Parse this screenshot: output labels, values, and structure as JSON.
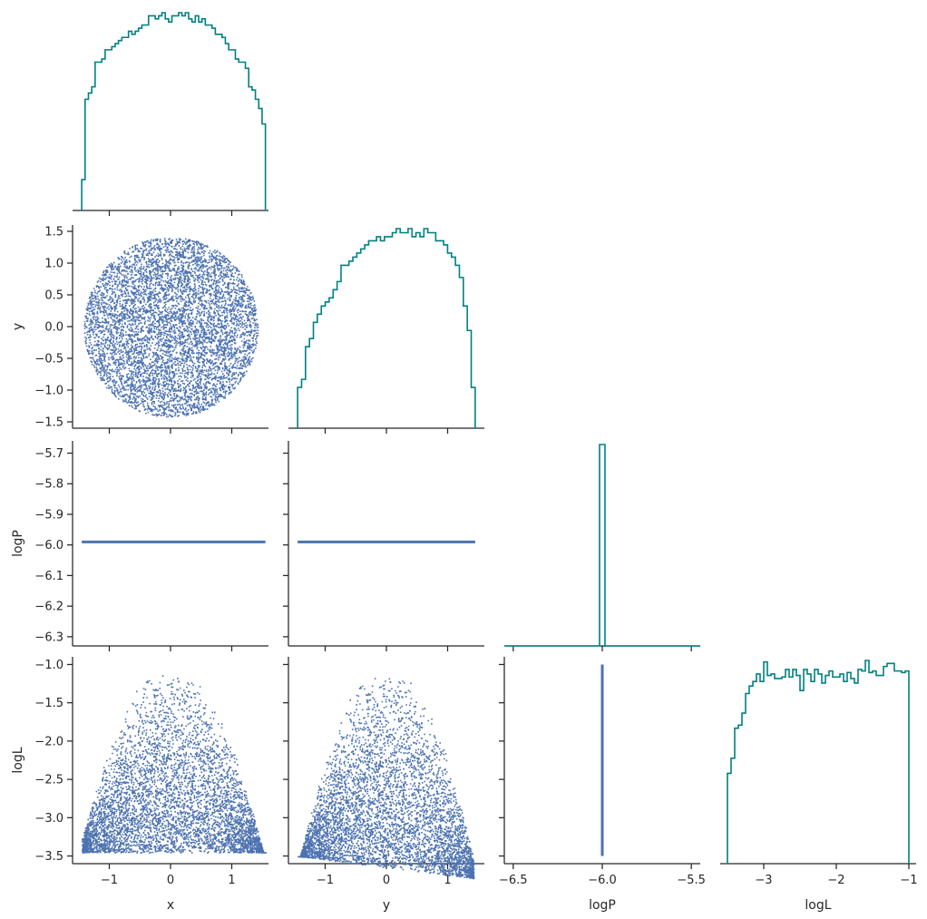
{
  "chart_data": {
    "type": "pairplot",
    "variables": [
      "x",
      "y",
      "logP",
      "logL"
    ],
    "layout": "corner",
    "colors": {
      "histogram": "#008080",
      "scatter": "#4c72b0"
    },
    "axes": {
      "x": {
        "label": "x",
        "range": [
          -1.6,
          1.6
        ],
        "ticks": [
          -1,
          0,
          1
        ],
        "tick_labels": [
          "−1",
          "0",
          "1"
        ]
      },
      "y": {
        "label": "y",
        "range": [
          -1.6,
          1.6
        ],
        "ticks": [
          -1.5,
          -1.0,
          -0.5,
          0.0,
          0.5,
          1.0,
          1.5
        ],
        "tick_labels": [
          "−1.5",
          "−1.0",
          "−0.5",
          "0.0",
          "0.5",
          "1.0",
          "1.5"
        ],
        "bottom_ticks": [
          -1,
          0,
          1
        ],
        "bottom_tick_labels": [
          "−1",
          "0",
          "1"
        ]
      },
      "logP": {
        "label": "logP",
        "range": [
          -6.33,
          -5.66
        ],
        "ticks": [
          -6.3,
          -6.2,
          -6.1,
          -6.0,
          -5.9,
          -5.8,
          -5.7
        ],
        "tick_labels": [
          "−6.3",
          "−6.2",
          "−6.1",
          "−6.0",
          "−5.9",
          "−5.8",
          "−5.7"
        ],
        "bottom_range": [
          -6.55,
          -5.45
        ],
        "bottom_ticks": [
          -6.5,
          -6.0,
          -5.5
        ],
        "bottom_tick_labels": [
          "−6.5",
          "−6.0",
          "−5.5"
        ]
      },
      "logL": {
        "label": "logL",
        "range": [
          -3.6,
          -0.9
        ],
        "ticks": [
          -3.5,
          -3.0,
          -2.5,
          -2.0,
          -1.5,
          -1.0
        ],
        "tick_labels": [
          "−3.5",
          "−3.0",
          "−2.5",
          "−2.0",
          "−1.5",
          "−1.0"
        ],
        "bottom_ticks": [
          -3,
          -2,
          -1
        ],
        "bottom_tick_labels": [
          "−3",
          "−2",
          "−1"
        ]
      }
    },
    "histograms": {
      "x": {
        "bin_start": -1.45,
        "bin_end": 1.55,
        "counts": [
          10,
          36,
          38,
          40,
          48,
          48,
          49,
          52,
          52,
          53,
          54,
          55,
          56,
          56,
          58,
          57,
          58,
          59,
          60,
          60,
          63,
          63,
          62,
          63,
          64,
          62,
          61,
          63,
          63,
          64,
          63,
          64,
          62,
          61,
          63,
          61,
          62,
          60,
          60,
          59,
          57,
          57,
          56,
          54,
          52,
          52,
          49,
          48,
          48,
          46,
          40,
          39,
          36,
          33,
          28
        ]
      },
      "y": {
        "bin_start": -1.45,
        "bin_end": 1.45,
        "counts": [
          10,
          12,
          20,
          22,
          26,
          28,
          30,
          31,
          32,
          34,
          36,
          40,
          40,
          41,
          42,
          43,
          44,
          45,
          46,
          46,
          47,
          46,
          47,
          47,
          48,
          49,
          48,
          48,
          49,
          47,
          48,
          47,
          49,
          48,
          48,
          46,
          46,
          45,
          43,
          42,
          40,
          37,
          30,
          24,
          10
        ]
      },
      "logP": {
        "bin_start": -6.55,
        "bin_end": -5.45,
        "spike_at": -6.0,
        "spike_height": 1.0
      },
      "logL": {
        "bin_start": -3.5,
        "bin_end": -1.0,
        "counts": [
          60,
          70,
          90,
          92,
          100,
          113,
          118,
          121,
          126,
          121,
          134,
          125,
          126,
          123,
          123,
          124,
          129,
          124,
          129,
          125,
          115,
          129,
          126,
          121,
          129,
          126,
          120,
          125,
          128,
          124,
          124,
          126,
          121,
          127,
          123,
          120,
          129,
          128,
          135,
          127,
          128,
          125,
          125,
          131,
          133,
          133,
          128,
          128,
          127,
          128
        ]
      }
    },
    "scatter_panels": [
      {
        "row": "y",
        "col": "x",
        "shape": "disk",
        "radius": 1.42,
        "center": [
          0.0,
          0.0
        ]
      },
      {
        "row": "logP",
        "col": "x",
        "shape": "horizontal-line",
        "value": -5.99,
        "x_range": [
          -1.45,
          1.55
        ]
      },
      {
        "row": "logP",
        "col": "y",
        "shape": "horizontal-line",
        "value": -5.99,
        "x_range": [
          -1.45,
          1.45
        ]
      },
      {
        "row": "logL",
        "col": "x",
        "shape": "inverted-parabola",
        "peak": [
          0.0,
          -1.0
        ],
        "x_range": [
          -1.45,
          1.55
        ],
        "min": -3.45
      },
      {
        "row": "logL",
        "col": "y",
        "shape": "inverted-parabola",
        "peak": [
          0.0,
          -1.0
        ],
        "x_range": [
          -1.45,
          1.42
        ],
        "min": -3.5
      },
      {
        "row": "logL",
        "col": "logP",
        "shape": "vertical-line",
        "value": -6.0,
        "y_range": [
          -3.5,
          -1.0
        ]
      }
    ]
  }
}
